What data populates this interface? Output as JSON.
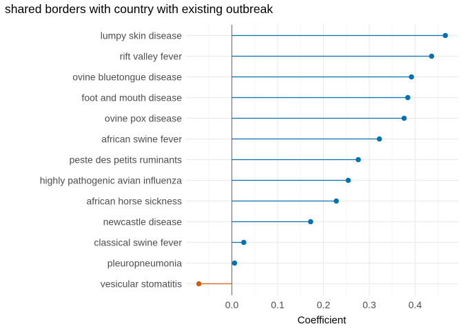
{
  "chart_data": {
    "type": "lollipop",
    "title": "shared borders with country with existing outbreak",
    "xlabel": "Coefficient",
    "ylabel": "",
    "xlim": [
      -0.1,
      0.5
    ],
    "xticks": [
      0.0,
      0.1,
      0.2,
      0.3,
      0.4
    ],
    "xtick_labels": [
      "0.0",
      "0.1",
      "0.2",
      "0.3",
      "0.4"
    ],
    "grid": true,
    "legend": "none",
    "categories": [
      "lumpy skin disease",
      "rift valley fever",
      "ovine bluetongue disease",
      "foot and mouth disease",
      "ovine pox disease",
      "african swine fever",
      "peste des petits ruminants",
      "highly pathogenic avian influenza",
      "african horse sickness",
      "newcastle disease",
      "classical swine fever",
      "pleuropneumonia",
      "vesicular stomatitis"
    ],
    "values": [
      0.466,
      0.436,
      0.392,
      0.384,
      0.376,
      0.322,
      0.276,
      0.254,
      0.228,
      0.172,
      0.026,
      0.006,
      -0.072
    ],
    "colors": {
      "positive": "#0072B2",
      "negative": "#D55E00",
      "zero_line": "#7f7f7f",
      "grid_major": "#ebebeb",
      "grid_minor": "#f5f5f5"
    }
  }
}
